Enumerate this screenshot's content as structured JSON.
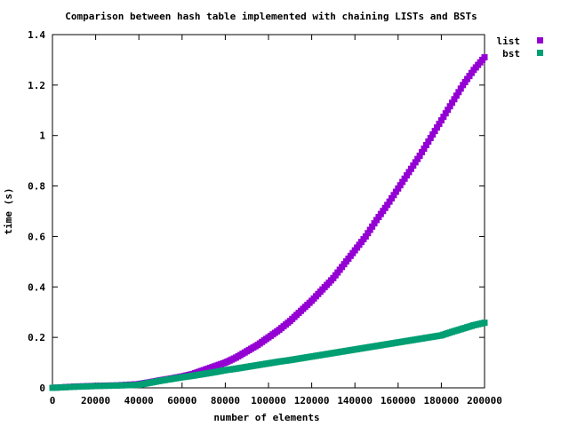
{
  "chart_data": {
    "type": "scatter",
    "title": "Comparison between hash table implemented with chaining LISTs and BSTs",
    "xlabel": "number of elements",
    "ylabel": "time (s)",
    "xlim": [
      0,
      200000
    ],
    "ylim": [
      0,
      1.4
    ],
    "xticks": [
      0,
      20000,
      40000,
      60000,
      80000,
      100000,
      120000,
      140000,
      160000,
      180000,
      200000
    ],
    "xtick_labels": [
      "0",
      "20000",
      "40000",
      "60000",
      "80000",
      "100000",
      "120000",
      "140000",
      "160000",
      "180000",
      "200000"
    ],
    "yticks": [
      0,
      0.2,
      0.4,
      0.6,
      0.8,
      1.0,
      1.2,
      1.4
    ],
    "ytick_labels": [
      "0",
      "0.2",
      "0.4",
      "0.6",
      "0.8",
      "1",
      "1.2",
      "1.4"
    ],
    "grid": false,
    "legend_position": "top-right-outside",
    "series": [
      {
        "name": "list",
        "color": "#9400d3",
        "x": [
          0,
          10000,
          20000,
          30000,
          40000,
          45000,
          50000,
          55000,
          60000,
          65000,
          70000,
          75000,
          80000,
          85000,
          90000,
          95000,
          100000,
          105000,
          110000,
          115000,
          120000,
          125000,
          130000,
          135000,
          140000,
          145000,
          150000,
          155000,
          160000,
          165000,
          170000,
          175000,
          180000,
          185000,
          190000,
          195000,
          200000
        ],
        "y": [
          0.0,
          0.005,
          0.008,
          0.01,
          0.015,
          0.022,
          0.03,
          0.037,
          0.045,
          0.055,
          0.07,
          0.085,
          0.1,
          0.12,
          0.145,
          0.17,
          0.2,
          0.23,
          0.265,
          0.305,
          0.345,
          0.39,
          0.435,
          0.49,
          0.545,
          0.6,
          0.665,
          0.725,
          0.79,
          0.855,
          0.92,
          0.99,
          1.06,
          1.13,
          1.2,
          1.26,
          1.31
        ]
      },
      {
        "name": "bst",
        "color": "#009e73",
        "x": [
          0,
          10000,
          20000,
          30000,
          40000,
          45000,
          50000,
          55000,
          60000,
          65000,
          70000,
          75000,
          80000,
          85000,
          90000,
          95000,
          100000,
          105000,
          110000,
          115000,
          120000,
          125000,
          130000,
          135000,
          140000,
          145000,
          150000,
          155000,
          160000,
          165000,
          170000,
          175000,
          180000,
          185000,
          190000,
          195000,
          200000
        ],
        "y": [
          0.0,
          0.004,
          0.007,
          0.009,
          0.012,
          0.02,
          0.028,
          0.035,
          0.042,
          0.048,
          0.055,
          0.062,
          0.07,
          0.076,
          0.083,
          0.09,
          0.097,
          0.104,
          0.11,
          0.117,
          0.124,
          0.131,
          0.138,
          0.145,
          0.152,
          0.159,
          0.166,
          0.173,
          0.18,
          0.187,
          0.194,
          0.201,
          0.208,
          0.222,
          0.235,
          0.248,
          0.258
        ]
      }
    ]
  }
}
